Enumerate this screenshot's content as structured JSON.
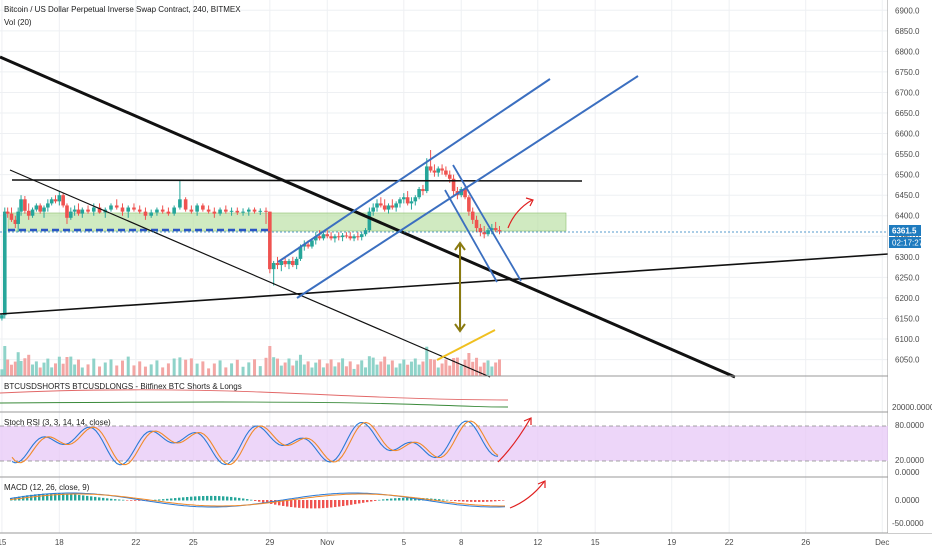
{
  "header": {
    "symbol_title": "Bitcoin / US Dollar Perpetual Inverse Swap Contract, 240, BITMEX",
    "volume_label": "Vol (20)"
  },
  "price_panel": {
    "current_price": "6361.5",
    "countdown": "02:17:27",
    "accent_color": "#1e7bbf"
  },
  "indicators": {
    "shorts_longs_label": "BTCUSDSHORTS BTCUSDLONGS - Bitfinex BTC Shorts & Longs",
    "shorts_longs_value": "20000.0000",
    "stoch_label": "Stoch RSI (3, 3, 14, 14, close)",
    "macd_label": "MACD (12, 26, close, 9)"
  },
  "chart_data": [
    {
      "type": "candlestick",
      "title": "Bitcoin / US Dollar Perpetual Inverse Swap Contract, 240, BITMEX",
      "y_ticks": [
        6050,
        6100,
        6150,
        6200,
        6250,
        6300,
        6350,
        6400,
        6450,
        6500,
        6550,
        6600,
        6650,
        6700,
        6750,
        6800,
        6850,
        6900
      ],
      "y_tick_labels": [
        "6050.0",
        "6100.0",
        "6150.0",
        "6200.0",
        "6250.0",
        "6300.0",
        "6350.0",
        "6400.0",
        "6450.0",
        "6500.0",
        "6550.0",
        "6600.0",
        "6650.0",
        "6700.0",
        "6750.0",
        "6800.0",
        "6850.0",
        "6900.0"
      ],
      "ylim": [
        6010,
        6925
      ],
      "x_tick_labels": [
        "15",
        "18",
        "22",
        "25",
        "29",
        "Nov",
        "5",
        "8",
        "12",
        "15",
        "19",
        "22",
        "26",
        "Dec"
      ],
      "x_tick_days": [
        15,
        18,
        22,
        25,
        29,
        32,
        36,
        39,
        43,
        46,
        50,
        53,
        57,
        61
      ],
      "xlim": [
        14.9,
        61.3
      ],
      "last_price": 6361.5,
      "series": [
        {
          "values": [
            [
              15.0,
              6150,
              6160,
              6145,
              6158
            ],
            [
              15.15,
              6158,
              6420,
              6150,
              6410
            ],
            [
              15.3,
              6410,
              6420,
              6395,
              6405
            ],
            [
              15.5,
              6405,
              6420,
              6385,
              6390
            ],
            [
              15.7,
              6390,
              6400,
              6370,
              6380
            ],
            [
              15.85,
              6380,
              6420,
              6360,
              6410
            ],
            [
              16.0,
              6410,
              6450,
              6400,
              6440
            ],
            [
              16.2,
              6440,
              6448,
              6405,
              6412
            ],
            [
              16.4,
              6412,
              6430,
              6390,
              6400
            ],
            [
              16.6,
              6400,
              6420,
              6395,
              6415
            ],
            [
              16.8,
              6415,
              6430,
              6410,
              6425
            ],
            [
              17.0,
              6425,
              6430,
              6405,
              6410
            ],
            [
              17.2,
              6410,
              6425,
              6395,
              6420
            ],
            [
              17.4,
              6420,
              6440,
              6410,
              6430
            ],
            [
              17.6,
              6430,
              6445,
              6425,
              6440
            ],
            [
              17.8,
              6440,
              6450,
              6430,
              6435
            ],
            [
              18.0,
              6435,
              6460,
              6425,
              6450
            ],
            [
              18.2,
              6450,
              6455,
              6420,
              6425
            ],
            [
              18.4,
              6425,
              6430,
              6380,
              6395
            ],
            [
              18.6,
              6395,
              6420,
              6390,
              6410
            ],
            [
              18.8,
              6410,
              6425,
              6400,
              6415
            ],
            [
              19.0,
              6415,
              6430,
              6400,
              6405
            ],
            [
              19.2,
              6405,
              6420,
              6395,
              6415
            ],
            [
              19.5,
              6415,
              6425,
              6405,
              6410
            ],
            [
              19.8,
              6410,
              6430,
              6400,
              6420
            ],
            [
              20.1,
              6420,
              6430,
              6405,
              6408
            ],
            [
              20.4,
              6408,
              6420,
              6395,
              6415
            ],
            [
              20.7,
              6415,
              6430,
              6410,
              6425
            ],
            [
              21.0,
              6425,
              6440,
              6415,
              6420
            ],
            [
              21.3,
              6420,
              6430,
              6400,
              6410
            ],
            [
              21.6,
              6410,
              6425,
              6395,
              6420
            ],
            [
              21.9,
              6420,
              6430,
              6410,
              6415
            ],
            [
              22.2,
              6415,
              6425,
              6405,
              6410
            ],
            [
              22.5,
              6410,
              6420,
              6390,
              6400
            ],
            [
              22.8,
              6400,
              6415,
              6395,
              6408
            ],
            [
              23.1,
              6408,
              6420,
              6400,
              6415
            ],
            [
              23.4,
              6415,
              6425,
              6405,
              6410
            ],
            [
              23.7,
              6410,
              6420,
              6400,
              6405
            ],
            [
              24.0,
              6405,
              6425,
              6400,
              6420
            ],
            [
              24.3,
              6420,
              6485,
              6415,
              6440
            ],
            [
              24.6,
              6440,
              6445,
              6410,
              6415
            ],
            [
              24.9,
              6415,
              6425,
              6405,
              6410
            ],
            [
              25.2,
              6410,
              6430,
              6400,
              6425
            ],
            [
              25.5,
              6425,
              6430,
              6410,
              6415
            ],
            [
              25.8,
              6415,
              6425,
              6405,
              6410
            ],
            [
              26.1,
              6410,
              6420,
              6395,
              6405
            ],
            [
              26.4,
              6405,
              6420,
              6400,
              6415
            ],
            [
              26.7,
              6415,
              6425,
              6405,
              6410
            ],
            [
              27.0,
              6410,
              6420,
              6400,
              6412
            ],
            [
              27.3,
              6412,
              6420,
              6402,
              6408
            ],
            [
              27.6,
              6408,
              6418,
              6400,
              6410
            ],
            [
              27.9,
              6410,
              6420,
              6400,
              6415
            ],
            [
              28.2,
              6415,
              6420,
              6405,
              6410
            ],
            [
              28.5,
              6410,
              6418,
              6402,
              6412
            ],
            [
              28.8,
              6412,
              6420,
              6380,
              6410
            ],
            [
              29.0,
              6410,
              6410,
              6260,
              6270
            ],
            [
              29.2,
              6270,
              6290,
              6230,
              6285
            ],
            [
              29.4,
              6285,
              6300,
              6270,
              6280
            ],
            [
              29.6,
              6280,
              6295,
              6265,
              6290
            ],
            [
              29.8,
              6290,
              6300,
              6275,
              6282
            ],
            [
              30.0,
              6282,
              6295,
              6270,
              6290
            ],
            [
              30.2,
              6290,
              6300,
              6275,
              6280
            ],
            [
              30.4,
              6280,
              6300,
              6270,
              6295
            ],
            [
              30.6,
              6295,
              6330,
              6290,
              6325
            ],
            [
              30.8,
              6325,
              6340,
              6315,
              6330
            ],
            [
              31.0,
              6330,
              6340,
              6320,
              6325
            ],
            [
              31.2,
              6325,
              6345,
              6320,
              6340
            ],
            [
              31.4,
              6340,
              6360,
              6330,
              6350
            ],
            [
              31.6,
              6350,
              6365,
              6340,
              6345
            ],
            [
              31.8,
              6345,
              6360,
              6340,
              6355
            ],
            [
              32.0,
              6355,
              6365,
              6345,
              6350
            ],
            [
              32.2,
              6350,
              6360,
              6340,
              6345
            ],
            [
              32.4,
              6345,
              6355,
              6335,
              6350
            ],
            [
              32.6,
              6350,
              6360,
              6340,
              6348
            ],
            [
              32.8,
              6348,
              6358,
              6338,
              6352
            ],
            [
              33.0,
              6352,
              6360,
              6345,
              6350
            ],
            [
              33.2,
              6350,
              6360,
              6340,
              6345
            ],
            [
              33.4,
              6345,
              6355,
              6338,
              6350
            ],
            [
              33.6,
              6350,
              6360,
              6340,
              6348
            ],
            [
              33.8,
              6348,
              6360,
              6340,
              6355
            ],
            [
              34.0,
              6355,
              6370,
              6350,
              6365
            ],
            [
              34.2,
              6365,
              6420,
              6360,
              6410
            ],
            [
              34.4,
              6410,
              6430,
              6400,
              6420
            ],
            [
              34.6,
              6420,
              6440,
              6410,
              6430
            ],
            [
              34.8,
              6430,
              6445,
              6420,
              6425
            ],
            [
              35.0,
              6425,
              6440,
              6410,
              6415
            ],
            [
              35.2,
              6415,
              6430,
              6405,
              6425
            ],
            [
              35.4,
              6425,
              6440,
              6415,
              6420
            ],
            [
              35.6,
              6420,
              6435,
              6410,
              6430
            ],
            [
              35.8,
              6430,
              6445,
              6420,
              6440
            ],
            [
              36.0,
              6440,
              6455,
              6430,
              6445
            ],
            [
              36.2,
              6445,
              6460,
              6425,
              6430
            ],
            [
              36.4,
              6430,
              6445,
              6415,
              6435
            ],
            [
              36.6,
              6435,
              6450,
              6425,
              6445
            ],
            [
              36.8,
              6445,
              6470,
              6440,
              6465
            ],
            [
              37.0,
              6465,
              6475,
              6450,
              6460
            ],
            [
              37.2,
              6460,
              6540,
              6455,
              6520
            ],
            [
              37.4,
              6520,
              6560,
              6505,
              6510
            ],
            [
              37.6,
              6510,
              6525,
              6495,
              6505
            ],
            [
              37.8,
              6505,
              6520,
              6495,
              6515
            ],
            [
              38.0,
              6515,
              6525,
              6500,
              6510
            ],
            [
              38.2,
              6510,
              6520,
              6495,
              6500
            ],
            [
              38.4,
              6500,
              6510,
              6480,
              6490
            ],
            [
              38.6,
              6490,
              6500,
              6450,
              6460
            ],
            [
              38.8,
              6460,
              6470,
              6440,
              6450
            ],
            [
              39.0,
              6450,
              6470,
              6445,
              6465
            ],
            [
              39.2,
              6465,
              6475,
              6440,
              6445
            ],
            [
              39.4,
              6445,
              6450,
              6400,
              6410
            ],
            [
              39.6,
              6410,
              6420,
              6380,
              6390
            ],
            [
              39.8,
              6390,
              6400,
              6360,
              6370
            ],
            [
              40.0,
              6370,
              6380,
              6350,
              6360
            ],
            [
              40.2,
              6360,
              6375,
              6345,
              6355
            ],
            [
              40.4,
              6355,
              6370,
              6350,
              6365
            ],
            [
              40.6,
              6365,
              6380,
              6355,
              6370
            ],
            [
              40.8,
              6370,
              6385,
              6360,
              6365
            ],
            [
              41.0,
              6365,
              6375,
              6355,
              6362
            ]
          ]
        },
        {
          "name": "Vol (20)"
        }
      ]
    },
    {
      "type": "line",
      "title": "BTCUSDSHORTS BTCUSDLONGS - Bitfinex BTC Shorts & Longs",
      "y_tick_labels": [
        "20000.0000"
      ]
    },
    {
      "type": "line",
      "title": "Stoch RSI (3, 3, 14, 14, close)",
      "y_tick_labels": [
        "80.0000",
        "20.0000",
        "0.0000"
      ],
      "ylim": [
        -2,
        100
      ]
    },
    {
      "type": "bar",
      "title": "MACD (12, 26, close, 9)",
      "y_tick_labels": [
        "0.0000",
        "-50.0000"
      ]
    }
  ],
  "colors": {
    "up": "#26a69a",
    "down": "#ef5350",
    "trendline_black": "#111111",
    "channel_blue": "#3b6fc0",
    "arrow_red": "#e02020",
    "arrow_olive": "#8a7a10",
    "zone_green": "#b7dea0",
    "stoch_band": "#e7c8f7"
  }
}
